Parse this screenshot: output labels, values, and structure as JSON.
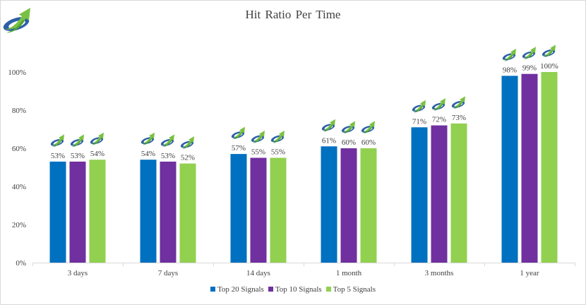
{
  "chart_data": {
    "type": "bar",
    "title": "Hit Ratio Per Time",
    "xlabel": "",
    "ylabel": "",
    "categories": [
      "3 days",
      "7 days",
      "14 days",
      "1 month",
      "3 months",
      "1 year"
    ],
    "series": [
      {
        "name": "Top 20 Signals",
        "color": "#0070c0",
        "values": [
          53,
          54,
          57,
          61,
          71,
          98
        ]
      },
      {
        "name": "Top 10 Signals",
        "color": "#7030a0",
        "values": [
          53,
          53,
          55,
          60,
          72,
          99
        ]
      },
      {
        "name": "Top 5 Signals",
        "color": "#92d050",
        "values": [
          54,
          52,
          55,
          60,
          73,
          100
        ]
      }
    ],
    "ylim": [
      0,
      100
    ],
    "yticks": [
      0,
      20,
      40,
      60,
      80,
      100
    ],
    "ytick_labels": [
      "0%",
      "20%",
      "40%",
      "60%",
      "80%",
      "100%"
    ],
    "data_labels": [
      [
        "53%",
        "54%",
        "57%",
        "61%",
        "71%",
        "98%"
      ],
      [
        "53%",
        "53%",
        "55%",
        "60%",
        "72%",
        "99%"
      ],
      [
        "54%",
        "52%",
        "55%",
        "60%",
        "73%",
        "100%"
      ]
    ],
    "grid": false,
    "legend_position": "bottom",
    "marker_icon": "arrow-swoosh-logo-icon"
  }
}
